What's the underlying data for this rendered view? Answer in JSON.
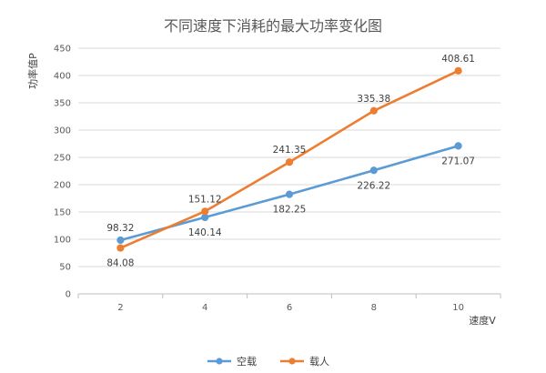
{
  "chart_data": {
    "type": "line",
    "title": "不同速度下消耗的最大功率变化图",
    "xlabel": "速度V",
    "ylabel": "功率值P",
    "x": [
      2,
      4,
      6,
      8,
      10
    ],
    "ylim": [
      0,
      450
    ],
    "ytick_step": 50,
    "grid": true,
    "legend_position": "bottom",
    "series": [
      {
        "name": "空载",
        "color": "#5B9BD5",
        "values": [
          98.32,
          140.14,
          182.25,
          226.22,
          271.07
        ]
      },
      {
        "name": "载人",
        "color": "#ED7D31",
        "values": [
          84.08,
          151.12,
          241.35,
          335.38,
          408.61
        ]
      }
    ]
  }
}
